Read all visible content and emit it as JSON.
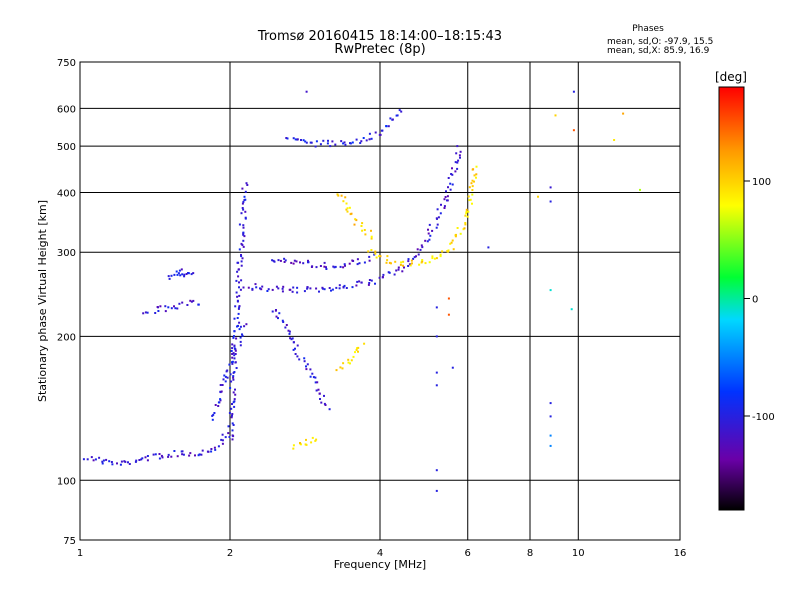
{
  "chart_data": {
    "type": "scatter",
    "title": "Tromsø 20160415 18:14:00–18:15:43",
    "subtitle": "RwPretec (8p)",
    "xlabel": "Frequency [MHz]",
    "ylabel": "Stationary phase Virtual Height [km]",
    "xscale": "log",
    "yscale": "log",
    "xlim": [
      1,
      16
    ],
    "ylim": [
      75,
      750
    ],
    "xticks": [
      1,
      2,
      4,
      6,
      8,
      10,
      16
    ],
    "yticks": [
      75,
      100,
      200,
      300,
      400,
      500,
      600,
      750
    ],
    "grid": true,
    "stats": {
      "heading": "Phases",
      "line_o": "mean, sd,O: -97.9, 15.5",
      "line_x": "mean, sd,X:  85.9, 16.9"
    },
    "colorbar": {
      "label": "[deg]",
      "range": [
        -180,
        180
      ],
      "ticks": [
        100,
        0,
        -100
      ],
      "colormap": "rainbow"
    },
    "traces": [
      {
        "x": [
          1.0,
          1.2,
          1.4,
          1.6,
          1.75,
          1.9,
          1.97
        ],
        "y": [
          112,
          108,
          112,
          114,
          114,
          118,
          125
        ],
        "phase": -110
      },
      {
        "x": [
          1.35,
          1.45,
          1.6,
          1.75
        ],
        "y": [
          225,
          228,
          232,
          236
        ],
        "phase": -110
      },
      {
        "x": [
          1.5,
          1.58,
          1.62,
          1.68
        ],
        "y": [
          265,
          275,
          270,
          268
        ],
        "phase": -105
      },
      {
        "x": [
          2.0,
          2.05,
          2.1,
          2.15
        ],
        "y": [
          120,
          200,
          300,
          420
        ],
        "phase": -105
      },
      {
        "x": [
          2.15,
          2.4,
          2.7,
          3.0,
          3.4,
          3.9,
          4.4,
          4.9,
          5.4,
          5.8
        ],
        "y": [
          255,
          252,
          250,
          250,
          255,
          260,
          275,
          310,
          380,
          500
        ],
        "phase": -110
      },
      {
        "x": [
          2.4,
          2.8,
          3.2,
          3.6,
          3.9
        ],
        "y": [
          290,
          285,
          280,
          285,
          295
        ],
        "phase": -115
      },
      {
        "x": [
          2.6,
          3.0,
          3.5,
          4.0,
          4.4
        ],
        "y": [
          520,
          505,
          510,
          530,
          600
        ],
        "phase": -100
      },
      {
        "x": [
          3.3,
          3.6,
          3.9
        ],
        "y": [
          400,
          345,
          320
        ],
        "phase": 100
      },
      {
        "x": [
          3.8,
          4.3,
          4.9,
          5.5,
          6.0,
          6.2
        ],
        "y": [
          300,
          285,
          285,
          300,
          360,
          460
        ],
        "phase": 95
      },
      {
        "x": [
          2.7,
          2.85,
          3.0
        ],
        "y": [
          118,
          120,
          123
        ],
        "phase": 95
      },
      {
        "x": [
          3.3,
          3.5,
          3.7
        ],
        "y": [
          170,
          180,
          195
        ],
        "phase": 90
      },
      {
        "x": [
          2.45,
          2.7,
          2.95,
          3.15
        ],
        "y": [
          230,
          190,
          160,
          140
        ],
        "phase": -110
      },
      {
        "x": [
          1.85,
          2.0,
          2.15
        ],
        "y": [
          135,
          175,
          215
        ],
        "phase": -105
      }
    ],
    "sparse_points": [
      {
        "x": 2.85,
        "y": 650,
        "phase": -115
      },
      {
        "x": 9.8,
        "y": 650,
        "phase": -100
      },
      {
        "x": 9.8,
        "y": 540,
        "phase": 150
      },
      {
        "x": 9.0,
        "y": 580,
        "phase": 100
      },
      {
        "x": 12.3,
        "y": 585,
        "phase": 120
      },
      {
        "x": 11.8,
        "y": 515,
        "phase": 90
      },
      {
        "x": 13.3,
        "y": 405,
        "phase": 60
      },
      {
        "x": 8.8,
        "y": 410,
        "phase": -110
      },
      {
        "x": 8.8,
        "y": 383,
        "phase": -100
      },
      {
        "x": 6.6,
        "y": 307,
        "phase": -100
      },
      {
        "x": 5.5,
        "y": 240,
        "phase": 150
      },
      {
        "x": 5.5,
        "y": 222,
        "phase": 150
      },
      {
        "x": 8.8,
        "y": 250,
        "phase": -10
      },
      {
        "x": 9.7,
        "y": 228,
        "phase": -10
      },
      {
        "x": 5.2,
        "y": 230,
        "phase": -100
      },
      {
        "x": 5.2,
        "y": 200,
        "phase": -100
      },
      {
        "x": 5.6,
        "y": 172,
        "phase": -100
      },
      {
        "x": 5.2,
        "y": 168,
        "phase": -100
      },
      {
        "x": 5.2,
        "y": 158,
        "phase": -100
      },
      {
        "x": 8.8,
        "y": 145,
        "phase": -100
      },
      {
        "x": 8.8,
        "y": 136,
        "phase": -100
      },
      {
        "x": 8.8,
        "y": 124,
        "phase": -50
      },
      {
        "x": 8.8,
        "y": 118,
        "phase": -50
      },
      {
        "x": 5.2,
        "y": 105,
        "phase": -100
      },
      {
        "x": 5.2,
        "y": 95,
        "phase": -100
      },
      {
        "x": 8.3,
        "y": 392,
        "phase": 100
      }
    ]
  }
}
